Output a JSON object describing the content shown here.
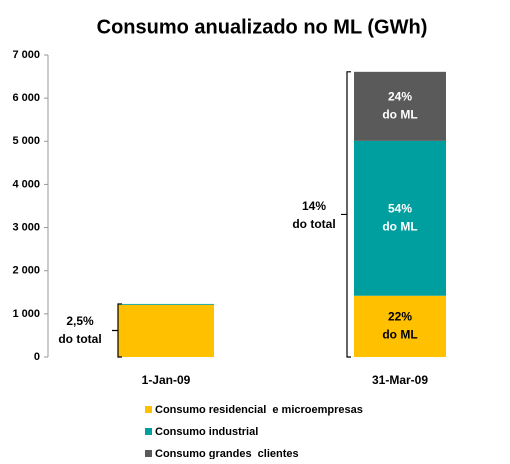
{
  "chart_data": {
    "type": "stacked_bar",
    "title": "Consumo anualizado no ML (GWh)",
    "categories": [
      "1-Jan-09",
      "31-Mar-09"
    ],
    "series": [
      {
        "name": "Consumo residencial  e microempresas",
        "color": "#ffc000",
        "values": [
          1210,
          1420
        ]
      },
      {
        "name": "Consumo industrial",
        "color": "#009f9f",
        "values": [
          20,
          3590
        ]
      },
      {
        "name": "Consumo grandes  clientes",
        "color": "#5a5a5a",
        "values": [
          0,
          1600
        ]
      }
    ],
    "ylim": [
      0,
      7000
    ],
    "yticks": [
      0,
      {
        "value": 1000,
        "label": "1 000"
      },
      {
        "value": 2000,
        "label": "2 000"
      },
      {
        "value": 3000,
        "label": "3 000"
      },
      {
        "value": 4000,
        "label": "4 000"
      },
      {
        "value": 5000,
        "label": "5 000"
      },
      {
        "value": 6000,
        "label": "6 000"
      },
      {
        "value": 7000,
        "label": "7 000"
      }
    ],
    "annotations": [
      [
        "2,5%",
        "do total"
      ],
      [
        "14%",
        "do total"
      ],
      [
        "22%",
        "do ML"
      ],
      [
        "54%",
        "do ML"
      ],
      [
        "24%",
        "do ML"
      ]
    ],
    "legend": "bottom"
  }
}
